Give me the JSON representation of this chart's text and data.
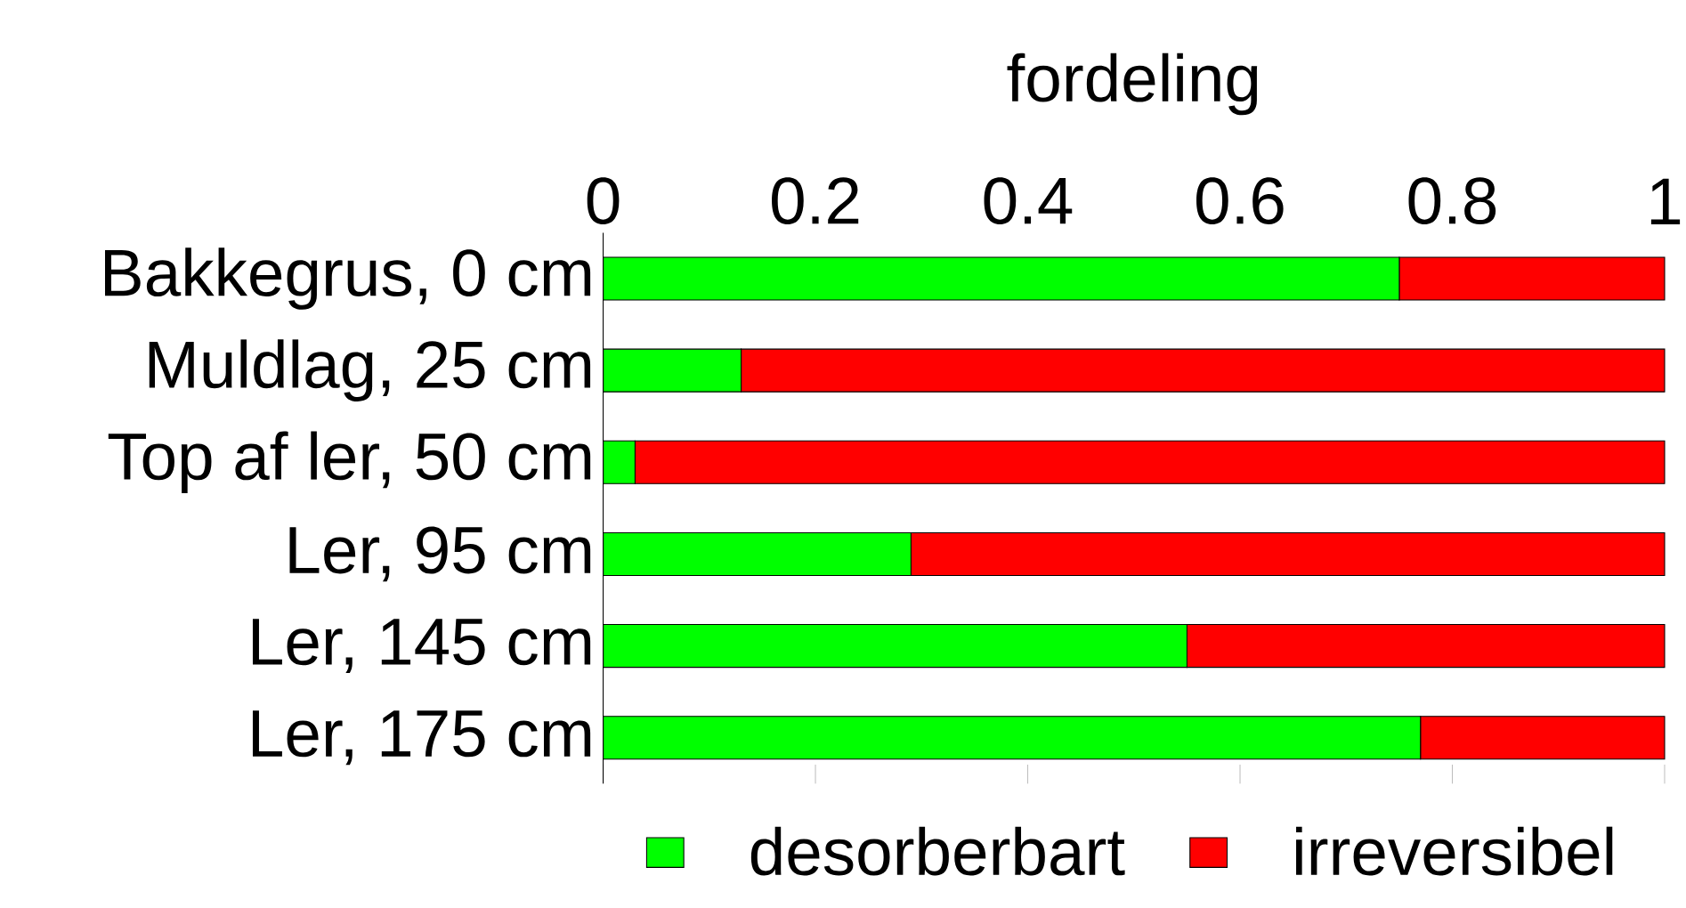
{
  "chart_data": {
    "type": "bar",
    "orientation": "horizontal",
    "stacked": true,
    "xlabel": "fordeling",
    "categories": [
      "Bakkegrus, 0 cm",
      "Muldlag, 25 cm",
      "Top af ler, 50 cm",
      "Ler, 95 cm",
      "Ler, 145 cm",
      "Ler, 175 cm"
    ],
    "series": [
      {
        "name": "desorberbart",
        "color": "#00ff00",
        "values": [
          0.75,
          0.13,
          0.03,
          0.29,
          0.55,
          0.77
        ]
      },
      {
        "name": "irreversibel",
        "color": "#ff0000",
        "values": [
          0.25,
          0.87,
          0.97,
          0.71,
          0.45,
          0.23
        ]
      }
    ],
    "xlim": [
      0,
      1
    ],
    "xticks": [
      0,
      0.2,
      0.4,
      0.6,
      0.8,
      1
    ],
    "legend": "bottom"
  }
}
